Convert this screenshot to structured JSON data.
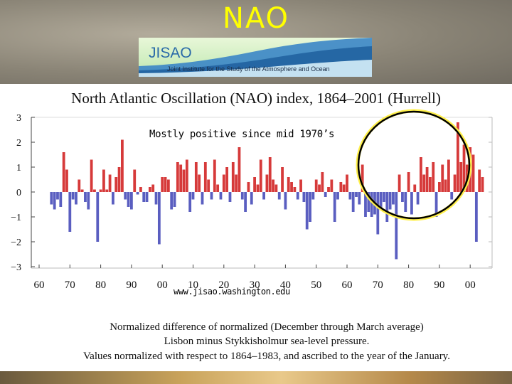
{
  "slide": {
    "title": "NAO",
    "logo_name": "JISAO",
    "logo_subtitle": "Joint Institute for the Study of the Atmosphere and Ocean",
    "annotation": "Mostly positive since mid 1970’s",
    "source_url": "www.jisao.washington.edu"
  },
  "colors": {
    "positive": "#d63a3a",
    "negative": "#5a5ec0",
    "title": "#ffff00",
    "highlight_circle": "#000000",
    "highlight_glow": "#fff04a"
  },
  "chart_data": {
    "type": "bar",
    "title": "North Atlantic Oscillation (NAO) index, 1864–2001 (Hurrell)",
    "xlabel": "",
    "ylabel": "",
    "ylim": [
      -3,
      3
    ],
    "yticks": [
      "3",
      "2",
      "1",
      "0",
      "−1",
      "−2",
      "−3"
    ],
    "xtick_labels": [
      "60",
      "70",
      "80",
      "90",
      "00",
      "10",
      "20",
      "30",
      "40",
      "50",
      "60",
      "70",
      "80",
      "90",
      "00"
    ],
    "x_start": 1864,
    "values": [
      -0.5,
      -0.7,
      -0.3,
      -0.6,
      1.6,
      0.9,
      -1.6,
      -0.3,
      -0.5,
      0.5,
      0.1,
      -0.4,
      -0.7,
      1.3,
      0.1,
      -2.0,
      0.1,
      0.9,
      0.1,
      0.7,
      -0.5,
      0.6,
      1.0,
      2.1,
      -0.3,
      -0.6,
      -0.7,
      0.9,
      -0.1,
      0.2,
      -0.4,
      -0.4,
      0.2,
      0.3,
      -0.5,
      -2.1,
      0.6,
      0.6,
      0.5,
      -0.7,
      -0.6,
      1.2,
      1.1,
      0.9,
      1.3,
      -0.8,
      -0.3,
      1.2,
      0.7,
      -0.5,
      1.2,
      0.5,
      -0.3,
      1.3,
      0.3,
      -0.3,
      0.7,
      1.0,
      -0.4,
      1.2,
      0.7,
      1.8,
      -0.3,
      -0.8,
      0.4,
      -0.5,
      0.6,
      0.3,
      1.3,
      -0.3,
      0.7,
      1.4,
      0.5,
      0.3,
      -0.3,
      1.0,
      -0.7,
      0.6,
      0.4,
      0.2,
      -0.3,
      0.5,
      -0.4,
      -1.5,
      -1.2,
      -0.3,
      0.5,
      0.3,
      0.8,
      -0.2,
      0.2,
      0.5,
      -1.2,
      -0.3,
      0.4,
      0.3,
      0.7,
      -0.3,
      -0.8,
      -0.2,
      -0.5,
      1.1,
      -1.0,
      -0.8,
      -1.0,
      -0.9,
      -1.7,
      -0.7,
      -0.4,
      -1.2,
      -0.7,
      -0.5,
      -2.7,
      0.7,
      -0.4,
      -0.8,
      0.8,
      -0.9,
      0.3,
      -0.5,
      1.4,
      0.7,
      1.0,
      0.6,
      1.2,
      -1.0,
      0.4,
      1.1,
      0.5,
      1.3,
      -0.3,
      0.7,
      2.8,
      1.2,
      1.9,
      1.1,
      1.8,
      1.5,
      -2.0,
      0.9,
      0.6
    ]
  },
  "captions": [
    "Normalized difference of normalized (December through March average)",
    "Lisbon minus Stykkisholmur sea-level pressure.",
    "Values normalized with respect to 1864–1983, and ascribed to the year of the January."
  ]
}
